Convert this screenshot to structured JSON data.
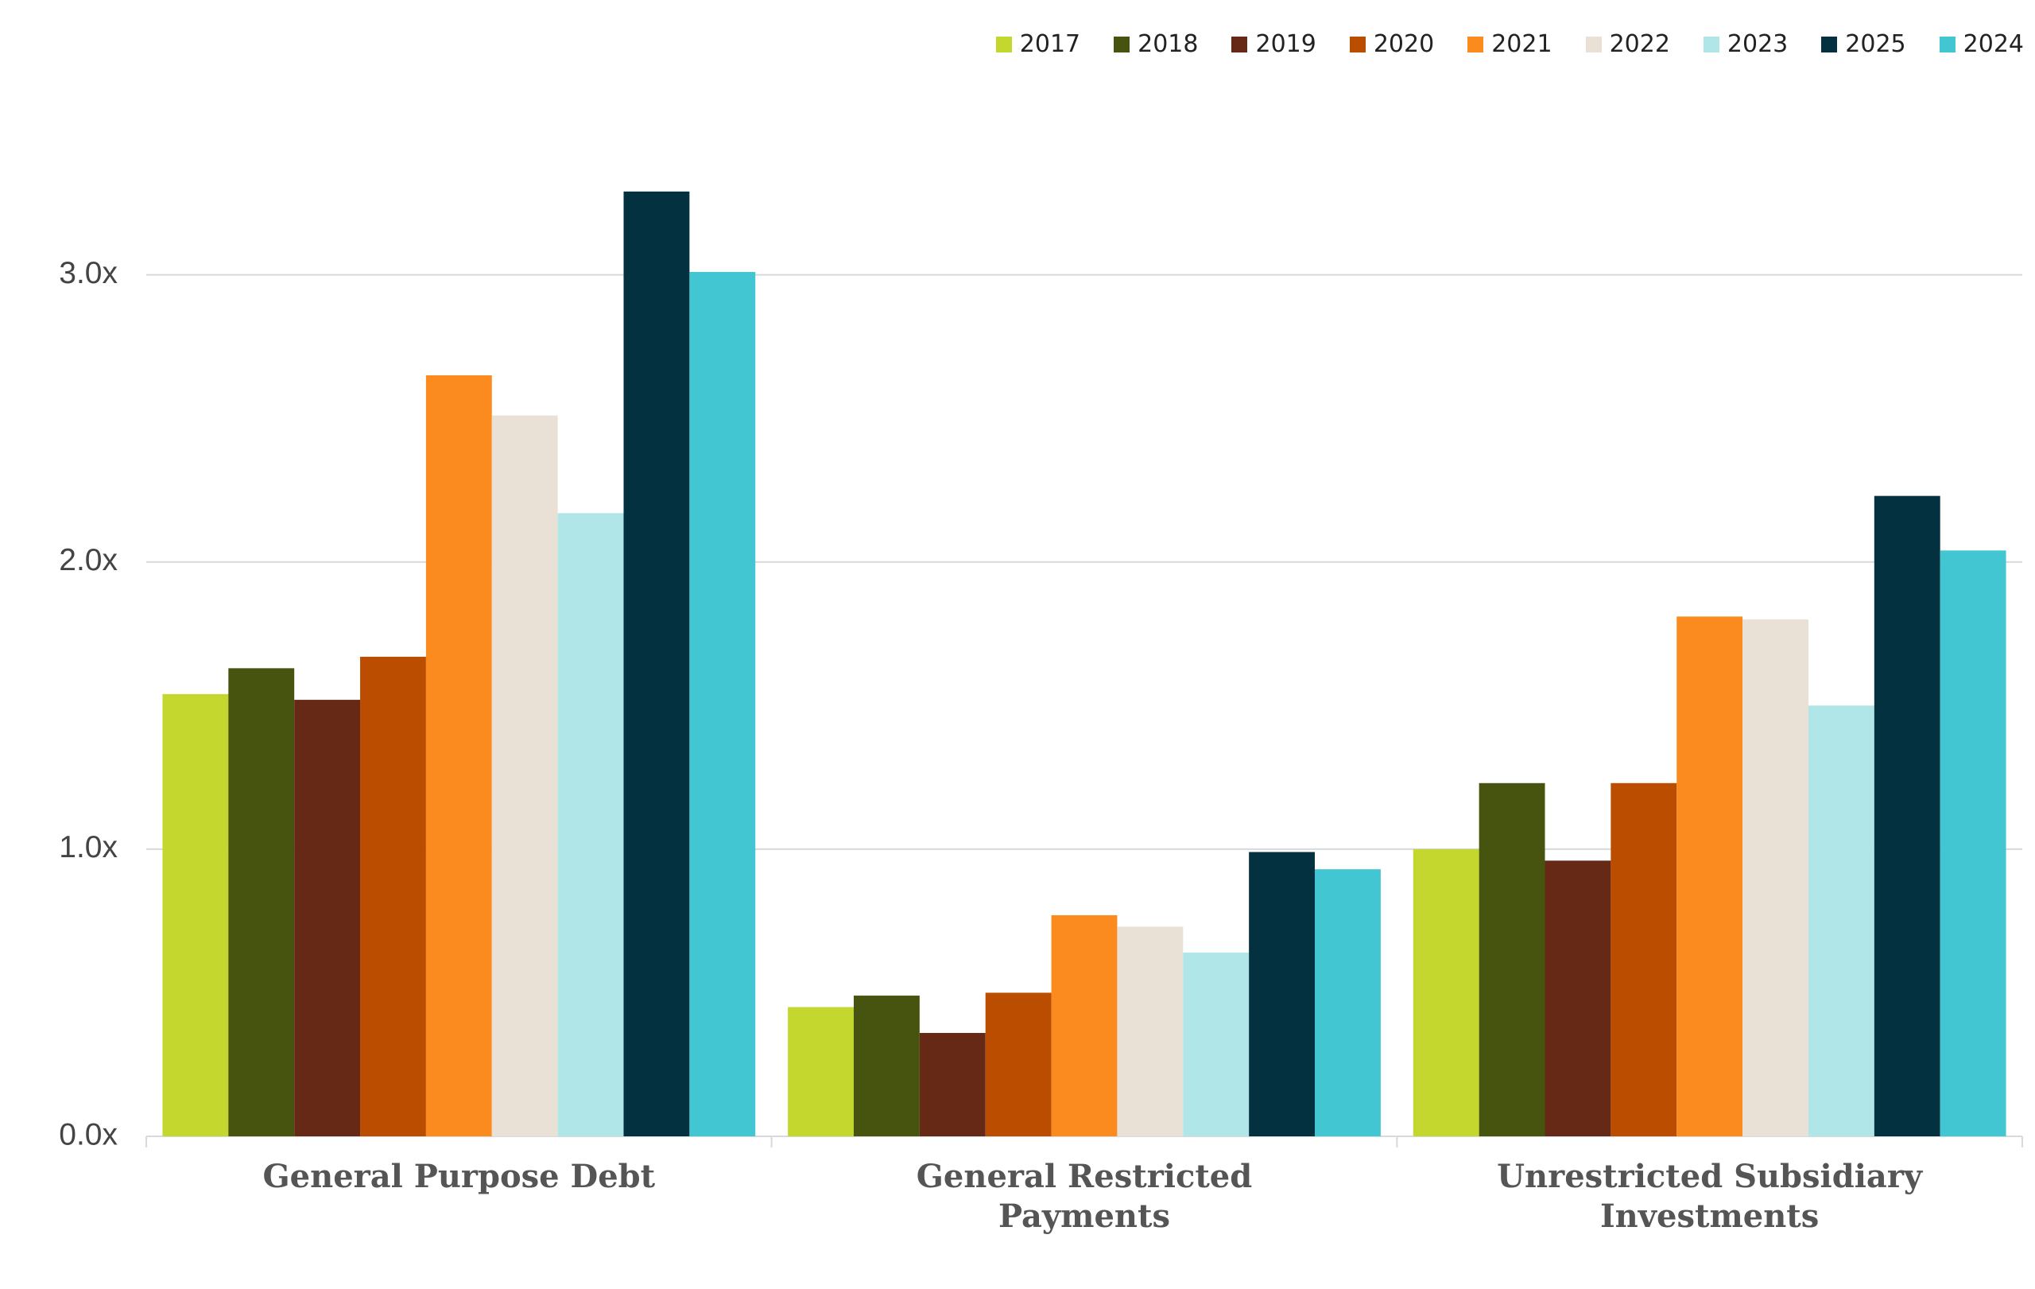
{
  "chart_data": {
    "type": "bar",
    "categories": [
      "General Purpose Debt",
      "General Restricted Payments",
      "Unrestricted Subsidiary Investments"
    ],
    "series": [
      {
        "name": "2017",
        "color": "#c3d72e",
        "values": [
          1.54,
          0.45,
          1.0
        ]
      },
      {
        "name": "2018",
        "color": "#46540f",
        "values": [
          1.63,
          0.49,
          1.23
        ]
      },
      {
        "name": "2019",
        "color": "#662915",
        "values": [
          1.52,
          0.36,
          0.96
        ]
      },
      {
        "name": "2020",
        "color": "#bb4d00",
        "values": [
          1.67,
          0.5,
          1.23
        ]
      },
      {
        "name": "2021",
        "color": "#fb8b1f",
        "values": [
          2.65,
          0.77,
          1.81
        ]
      },
      {
        "name": "2022",
        "color": "#e9e1d6",
        "values": [
          2.51,
          0.73,
          1.8
        ]
      },
      {
        "name": "2023",
        "color": "#b1e6e9",
        "values": [
          2.17,
          0.64,
          1.5
        ]
      },
      {
        "name": "2025",
        "color": "#03313f",
        "values": [
          3.29,
          0.99,
          2.23
        ]
      },
      {
        "name": "2024",
        "color": "#41c6d2",
        "values": [
          3.01,
          0.93,
          2.04
        ]
      }
    ],
    "ylim": [
      0,
      3.5
    ],
    "yticks": [
      {
        "value": 0,
        "label": "0.0x"
      },
      {
        "value": 1,
        "label": "1.0x"
      },
      {
        "value": 2,
        "label": "2.0x"
      },
      {
        "value": 3,
        "label": "3.0x"
      }
    ],
    "grid": true,
    "legend": "top-right"
  }
}
